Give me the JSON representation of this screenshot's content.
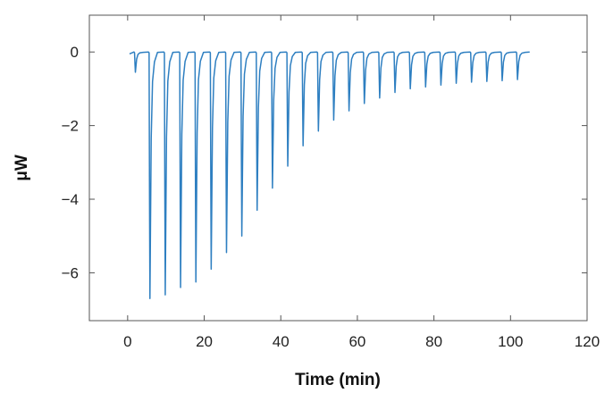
{
  "chart_data": {
    "type": "line",
    "xlabel": "Time (min)",
    "ylabel": "μW",
    "xlim": [
      -10,
      120
    ],
    "ylim": [
      -7.3,
      1.0
    ],
    "x_ticks": [
      0,
      20,
      40,
      60,
      80,
      100,
      120
    ],
    "x_tick_labels": [
      "0",
      "20",
      "40",
      "60",
      "80",
      "100",
      "120"
    ],
    "y_ticks": [
      0,
      -2,
      -4,
      -6
    ],
    "y_tick_labels": [
      "0",
      "−2",
      "−4",
      "−6"
    ],
    "grid": false,
    "legend": "none",
    "line_color": "#2e7fc1",
    "baseline": 0,
    "start_time": 0.5,
    "end_time": 105,
    "injections": {
      "time_min": [
        1.8,
        5.6,
        9.6,
        13.6,
        17.6,
        21.6,
        25.6,
        29.6,
        33.6,
        37.6,
        41.6,
        45.6,
        49.6,
        53.6,
        57.6,
        61.6,
        65.6,
        69.6,
        73.6,
        77.6,
        81.6,
        85.6,
        89.6,
        93.6,
        97.6,
        101.6
      ],
      "peak_uW": [
        -0.55,
        -6.7,
        -6.6,
        -6.4,
        -6.25,
        -5.9,
        -5.45,
        -5.0,
        -4.3,
        -3.7,
        -3.1,
        -2.55,
        -2.15,
        -1.85,
        -1.6,
        -1.4,
        -1.25,
        -1.1,
        -1.0,
        -0.95,
        -0.9,
        -0.85,
        -0.82,
        -0.8,
        -0.78,
        -0.75
      ]
    }
  }
}
